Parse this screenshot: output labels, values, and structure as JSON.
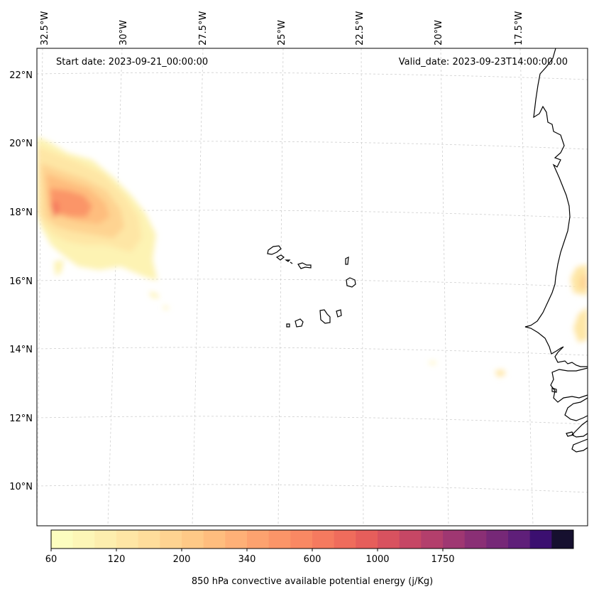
{
  "header": {
    "start_date": "Start date: 2023-09-21_00:00:00",
    "valid_date": "Valid_date: 2023-09-23T14:00:00.00"
  },
  "longitude_labels": [
    "32.5°W",
    "30°W",
    "27.5°W",
    "25°W",
    "22.5°W",
    "20°W",
    "17.5°W"
  ],
  "latitude_labels": [
    "22°N",
    "20°N",
    "18°N",
    "16°N",
    "14°N",
    "12°N",
    "10°N"
  ],
  "colorbar": {
    "label": "850 hPa convective available potential energy (j/Kg)",
    "tick_labels": [
      "60",
      "120",
      "200",
      "340",
      "600",
      "1000",
      "1750"
    ],
    "colors": [
      "#fcfdbf",
      "#fdf6b7",
      "#fdeeae",
      "#fee6a5",
      "#fedd9b",
      "#fed391",
      "#fec987",
      "#febd7e",
      "#feb077",
      "#fda26f",
      "#fb9568",
      "#f98863",
      "#f57a5f",
      "#ef6c5c",
      "#e65e5b",
      "#d8525f",
      "#c64765",
      "#b33f6c",
      "#9f3772",
      "#8a2f75",
      "#762877",
      "#5f1f79",
      "#3b0f70",
      "#16102f"
    ]
  },
  "chart_data": {
    "type": "heatmap",
    "field": "850 hPa convective available potential energy",
    "units": "j/Kg",
    "levels_labeled": [
      60,
      120,
      200,
      340,
      600,
      1000,
      1750
    ],
    "lon_range": [
      -33,
      -16
    ],
    "lat_range": [
      9,
      22.8
    ],
    "features": [
      {
        "region": "northwest",
        "lon": [
          -33,
          -29.8
        ],
        "lat": [
          16.5,
          19.8
        ],
        "max_value": 600
      },
      {
        "region": "east coast",
        "lon": [
          -16.4,
          -16
        ],
        "lat": [
          14.6,
          16.5
        ],
        "max_value": 120
      },
      {
        "region": "small cells",
        "lon": [
          -22,
          -19.3
        ],
        "lat": [
          13.1,
          13.6
        ],
        "max_value": 80
      }
    ]
  }
}
